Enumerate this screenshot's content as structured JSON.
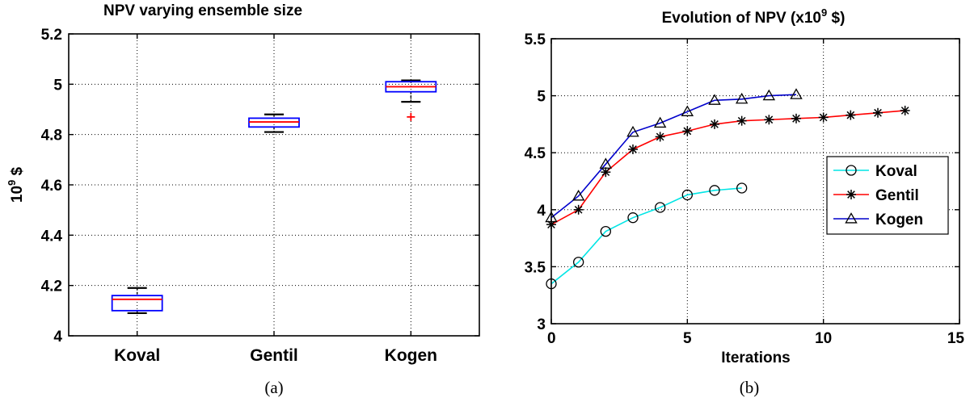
{
  "chart_data": [
    {
      "type": "box",
      "panel": "a",
      "title": "NPV varying ensemble size",
      "ylabel": "10^9 $",
      "ylabel_base": "10",
      "ylabel_exp": "9",
      "ylabel_unit": " $",
      "ylim": [
        4,
        5.2
      ],
      "yticks": [
        "4",
        "4.2",
        "4.4",
        "4.6",
        "4.8",
        "5",
        "5.2"
      ],
      "ytick_values": [
        4,
        4.2,
        4.4,
        4.6,
        4.8,
        5,
        5.2
      ],
      "grid": true,
      "categories": [
        "Koval",
        "Gentil",
        "Kogen"
      ],
      "boxes": [
        {
          "category": "Koval",
          "whisker_low": 4.09,
          "q1": 4.1,
          "median": 4.145,
          "q3": 4.16,
          "whisker_high": 4.19,
          "outliers": []
        },
        {
          "category": "Gentil",
          "whisker_low": 4.81,
          "q1": 4.83,
          "median": 4.85,
          "q3": 4.865,
          "whisker_high": 4.88,
          "outliers": []
        },
        {
          "category": "Kogen",
          "whisker_low": 4.93,
          "q1": 4.97,
          "median": 4.99,
          "q3": 5.01,
          "whisker_high": 5.015,
          "outliers": [
            4.87
          ]
        }
      ],
      "colors": {
        "box": "#0000ff",
        "median": "#ff0000",
        "whisker": "#000000",
        "outlier": "#ff0000"
      },
      "caption": "(a)"
    },
    {
      "type": "line",
      "panel": "b",
      "title_prefix": "Evolution of NPV (x10",
      "title_exp": "9",
      "title_suffix": " $)",
      "xlabel": "Iterations",
      "ylabel": "",
      "xlim": [
        0,
        15
      ],
      "ylim": [
        3,
        5.5
      ],
      "xticks": [
        "0",
        "5",
        "10",
        "15"
      ],
      "xtick_values": [
        0,
        5,
        10,
        15
      ],
      "yticks": [
        "3",
        "3.5",
        "4",
        "4.5",
        "5",
        "5.5"
      ],
      "ytick_values": [
        3,
        3.5,
        4,
        4.5,
        5,
        5.5
      ],
      "grid": true,
      "legend_position": "center-right",
      "series": [
        {
          "name": "Koval",
          "color": "#00e5e5",
          "marker": "circle",
          "x": [
            0,
            1,
            2,
            3,
            4,
            5,
            6,
            7
          ],
          "y": [
            3.35,
            3.54,
            3.81,
            3.93,
            4.02,
            4.13,
            4.17,
            4.19
          ]
        },
        {
          "name": "Gentil",
          "color": "#ff0000",
          "marker": "star",
          "x": [
            0,
            1,
            2,
            3,
            4,
            5,
            6,
            7,
            8,
            9,
            10,
            11,
            12,
            13
          ],
          "y": [
            3.87,
            4.0,
            4.33,
            4.53,
            4.64,
            4.69,
            4.75,
            4.78,
            4.79,
            4.8,
            4.81,
            4.83,
            4.85,
            4.87
          ]
        },
        {
          "name": "Kogen",
          "color": "#0000cc",
          "marker": "triangle",
          "x": [
            0,
            1,
            2,
            3,
            4,
            5,
            6,
            7,
            8,
            9
          ],
          "y": [
            3.93,
            4.12,
            4.4,
            4.68,
            4.76,
            4.86,
            4.96,
            4.97,
            5.0,
            5.01
          ]
        }
      ],
      "caption": "(b)"
    }
  ]
}
